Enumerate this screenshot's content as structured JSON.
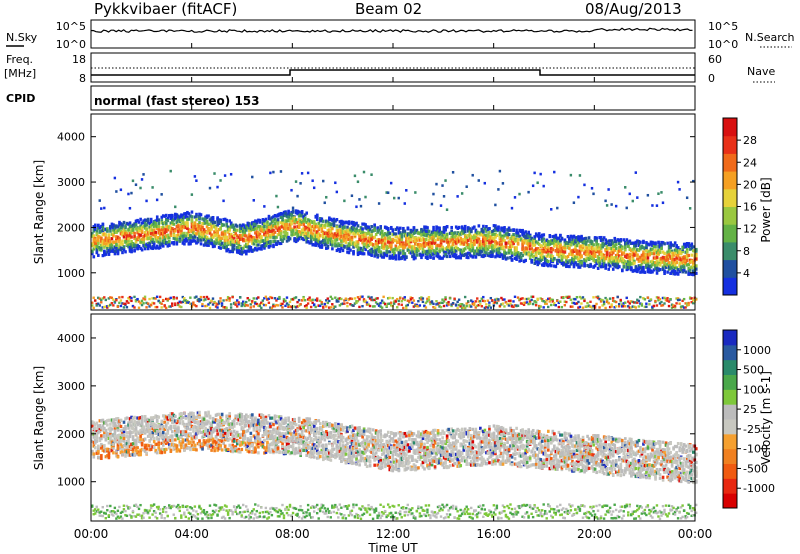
{
  "header": {
    "station": "Pykkvibaer (fitACF)",
    "beam": "Beam 02",
    "date": "08/Aug/2013"
  },
  "noise_panel": {
    "left_label": "N.Sky",
    "right_label": "N.Search",
    "left_ticks": [
      "10^5",
      "10^0"
    ],
    "right_ticks": [
      "10^5",
      "10^0"
    ]
  },
  "freq_panel": {
    "left_label_1": "Freq.",
    "left_label_2": "[MHz]",
    "right_label": "Nave",
    "left_ticks": [
      "18",
      "8"
    ],
    "right_ticks": [
      "60",
      "0"
    ]
  },
  "cpid": {
    "label": "CPID",
    "value": "normal (fast stereo) 153"
  },
  "chart_data": [
    {
      "type": "heatmap",
      "title": "",
      "quantity": "Power",
      "ylabel": "Slant Range [km]",
      "xlabel": "Time UT",
      "ylim": [
        180,
        4500
      ],
      "xlim": [
        0,
        24
      ],
      "yticks": [
        1000,
        2000,
        3000,
        4000
      ],
      "xticks": [
        "00:00",
        "04:00",
        "08:00",
        "12:00",
        "16:00",
        "20:00",
        "00:00"
      ],
      "colorbar": {
        "label": "Power [dB]",
        "ticks": [
          "4",
          "8",
          "12",
          "16",
          "20",
          "24",
          "28"
        ],
        "colors": [
          "#1530e0",
          "#2050a0",
          "#3a8c6a",
          "#63b245",
          "#9ac840",
          "#e6d23a",
          "#f5a023",
          "#f06a1a",
          "#e83018",
          "#d81010"
        ]
      },
      "main_band": [
        {
          "t": 0,
          "range": 1700
        },
        {
          "t": 2,
          "range": 1850
        },
        {
          "t": 4,
          "range": 2000
        },
        {
          "t": 6,
          "range": 1750
        },
        {
          "t": 8,
          "range": 2050
        },
        {
          "t": 10,
          "range": 1800
        },
        {
          "t": 12,
          "range": 1650
        },
        {
          "t": 16,
          "range": 1700
        },
        {
          "t": 18,
          "range": 1500
        },
        {
          "t": 20,
          "range": 1450
        },
        {
          "t": 22,
          "range": 1350
        },
        {
          "t": 24,
          "range": 1300
        }
      ]
    },
    {
      "type": "heatmap",
      "title": "",
      "quantity": "Velocity",
      "ylabel": "Slant Range [km]",
      "xlabel": "Time UT",
      "ylim": [
        180,
        4500
      ],
      "xlim": [
        0,
        24
      ],
      "yticks": [
        1000,
        2000,
        3000,
        4000
      ],
      "xticks": [
        "00:00",
        "04:00",
        "08:00",
        "12:00",
        "16:00",
        "20:00",
        "00:00"
      ],
      "colorbar": {
        "label": "Velocity [m s-1]",
        "ticks": [
          "1000",
          "500",
          "100",
          "25",
          "-25",
          "-100",
          "-500",
          "-1000"
        ],
        "colors": [
          "#1a2ac0",
          "#2a5aa0",
          "#2a8a6a",
          "#4aa84a",
          "#7ec83a",
          "#bcbcbc",
          "#c8c8c0",
          "#f5a030",
          "#f08020",
          "#f05a10",
          "#e82810",
          "#d80000"
        ]
      },
      "gs_band": [
        {
          "t": 0,
          "range": 1900
        },
        {
          "t": 4,
          "range": 2100
        },
        {
          "t": 8,
          "range": 2000
        },
        {
          "t": 12,
          "range": 1650
        },
        {
          "t": 16,
          "range": 1800
        },
        {
          "t": 20,
          "range": 1600
        },
        {
          "t": 24,
          "range": 1400
        }
      ]
    }
  ]
}
